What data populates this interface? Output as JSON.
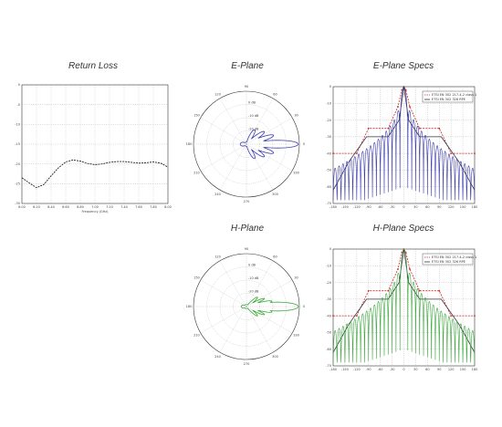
{
  "titles": {
    "return_loss": "Return Loss",
    "e_plane": "E-Plane",
    "e_plane_specs": "E-Plane Specs",
    "h_plane": "H-Plane",
    "h_plane_specs": "H-Plane Specs"
  },
  "colors": {
    "e_pattern": "#3b3bb0",
    "h_pattern": "#3aa83a",
    "spec_red": "#d42a2a",
    "spec_dark": "#333344",
    "return_loss": "#222222",
    "grid": "#999999"
  },
  "chart_data": [
    {
      "type": "line",
      "name": "return-loss",
      "title": "Return Loss",
      "xlabel": "Frequency (GHz)",
      "ylabel": "",
      "xlim": [
        6.0,
        8.0
      ],
      "ylim": [
        -30,
        0
      ],
      "grid": true,
      "x_ticks": [
        "6.00",
        "6.20",
        "6.40",
        "6.60",
        "6.80",
        "7.00",
        "7.20",
        "7.40",
        "7.60",
        "7.80",
        "8.00"
      ],
      "y_ticks": [
        "0",
        "-5",
        "-10",
        "-15",
        "-20",
        "-25",
        "-30"
      ],
      "x": [
        6.0,
        6.1,
        6.2,
        6.3,
        6.4,
        6.5,
        6.6,
        6.7,
        6.8,
        6.9,
        7.0,
        7.1,
        7.2,
        7.3,
        7.4,
        7.5,
        7.6,
        7.7,
        7.8,
        7.9,
        8.0
      ],
      "y": [
        -23.5,
        -24.8,
        -26.0,
        -25.2,
        -23.0,
        -21.0,
        -19.5,
        -19.0,
        -19.3,
        -19.9,
        -20.2,
        -20.0,
        -19.6,
        -19.4,
        -19.4,
        -19.6,
        -19.8,
        -19.7,
        -19.5,
        -19.8,
        -20.8
      ]
    },
    {
      "type": "polar",
      "name": "e-plane",
      "title": "E-Plane",
      "color": "#3b3bb0",
      "angle_labels": [
        "0",
        "30",
        "60",
        "90",
        "120",
        "150",
        "180",
        "210",
        "240",
        "270",
        "300",
        "330"
      ],
      "ring_labels": [
        "-20 dB",
        "-10 dB",
        "0 dB"
      ],
      "lobes": [
        {
          "angle": 0,
          "r": 1.0,
          "width": 7
        },
        {
          "angle": 18,
          "r": 0.55,
          "width": 7
        },
        {
          "angle": -18,
          "r": 0.55,
          "width": 7
        },
        {
          "angle": 35,
          "r": 0.42,
          "width": 8
        },
        {
          "angle": -35,
          "r": 0.42,
          "width": 8
        },
        {
          "angle": 60,
          "r": 0.32,
          "width": 10
        },
        {
          "angle": -60,
          "r": 0.32,
          "width": 10
        },
        {
          "angle": 180,
          "r": 0.12,
          "width": 30
        }
      ]
    },
    {
      "type": "line",
      "name": "e-plane-specs",
      "title": "E-Plane Specs",
      "xlim": [
        -180,
        180
      ],
      "ylim": [
        -70,
        0
      ],
      "grid": true,
      "legend": "top-right",
      "legend_entries": [
        "ETSI EN 302 217-4-2 class 1",
        "ETSI EN 302 326 RPE"
      ],
      "x_ticks": [
        "-180",
        "-150",
        "-120",
        "-90",
        "-60",
        "-30",
        "0",
        "30",
        "60",
        "90",
        "120",
        "150",
        "180"
      ],
      "y_ticks": [
        "0",
        "-10",
        "-20",
        "-30",
        "-40",
        "-50",
        "-60",
        "-70"
      ],
      "series": [
        {
          "values_x": [
            -180,
            -120,
            -90,
            -40,
            -15,
            -5,
            0,
            5,
            15,
            40,
            90,
            120,
            180
          ],
          "values_y": [
            -40,
            -40,
            -25,
            -25,
            -12,
            -2,
            0,
            -2,
            -12,
            -25,
            -25,
            -40,
            -40
          ],
          "color": "#d42a2a",
          "dashed": true
        },
        {
          "values_x": [
            -180,
            -140,
            -95,
            -40,
            -12,
            -3,
            0,
            3,
            12,
            40,
            95,
            140,
            180
          ],
          "values_y": [
            -62,
            -45,
            -30,
            -30,
            -20,
            -5,
            0,
            -5,
            -20,
            -30,
            -30,
            -45,
            -62
          ],
          "color": "#333344",
          "dashed": false
        }
      ],
      "pattern_color": "#3b3bb0"
    },
    {
      "type": "polar",
      "name": "h-plane",
      "title": "H-Plane",
      "color": "#3aa83a",
      "angle_labels": [
        "0",
        "30",
        "60",
        "90",
        "120",
        "150",
        "180",
        "210",
        "240",
        "270",
        "300",
        "330"
      ],
      "ring_labels": [
        "-20 dB",
        "-10 dB",
        "0 dB"
      ],
      "lobes": [
        {
          "angle": 0,
          "r": 1.0,
          "width": 8
        },
        {
          "angle": 12,
          "r": 0.5,
          "width": 5
        },
        {
          "angle": -12,
          "r": 0.5,
          "width": 5
        },
        {
          "angle": 24,
          "r": 0.38,
          "width": 5
        },
        {
          "angle": -24,
          "r": 0.38,
          "width": 5
        },
        {
          "angle": 40,
          "r": 0.28,
          "width": 7
        },
        {
          "angle": -40,
          "r": 0.28,
          "width": 7
        },
        {
          "angle": 180,
          "r": 0.1,
          "width": 30
        }
      ]
    },
    {
      "type": "line",
      "name": "h-plane-specs",
      "title": "H-Plane Specs",
      "xlim": [
        -180,
        180
      ],
      "ylim": [
        -70,
        0
      ],
      "grid": true,
      "legend": "top-right",
      "legend_entries": [
        "ETSI EN 302 217-4-2 class 1",
        "ETSI EN 302 326 RPE"
      ],
      "x_ticks": [
        "-180",
        "-150",
        "-120",
        "-90",
        "-60",
        "-30",
        "0",
        "30",
        "60",
        "90",
        "120",
        "150",
        "180"
      ],
      "y_ticks": [
        "0",
        "-10",
        "-20",
        "-30",
        "-40",
        "-50",
        "-60",
        "-70"
      ],
      "series": [
        {
          "values_x": [
            -180,
            -120,
            -90,
            -40,
            -15,
            -5,
            0,
            5,
            15,
            40,
            90,
            120,
            180
          ],
          "values_y": [
            -40,
            -40,
            -25,
            -25,
            -12,
            -2,
            0,
            -2,
            -12,
            -25,
            -25,
            -40,
            -40
          ],
          "color": "#d42a2a",
          "dashed": true
        },
        {
          "values_x": [
            -180,
            -140,
            -95,
            -40,
            -12,
            -3,
            0,
            3,
            12,
            40,
            95,
            140,
            180
          ],
          "values_y": [
            -62,
            -45,
            -30,
            -30,
            -20,
            -5,
            0,
            -5,
            -20,
            -30,
            -30,
            -45,
            -62
          ],
          "color": "#333344",
          "dashed": false
        }
      ],
      "pattern_color": "#3aa83a"
    }
  ]
}
